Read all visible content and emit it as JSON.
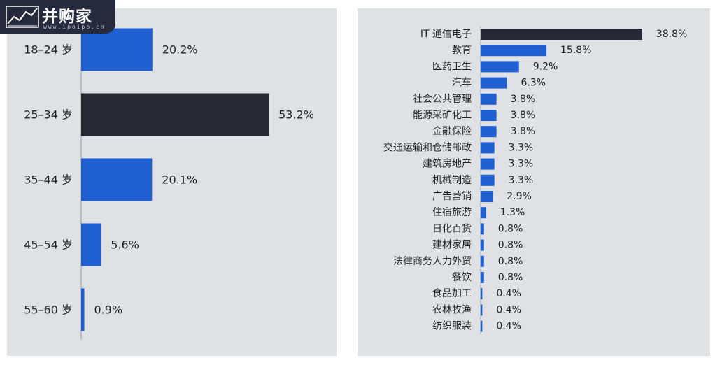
{
  "watermark": {
    "brand": "并购家",
    "url": "www.ipoipo.cn"
  },
  "colors": {
    "bar": "#1f5fcf",
    "highlight": "#262933",
    "text": "#222222",
    "axis": "#999999"
  },
  "chart_data": [
    {
      "type": "bar",
      "orientation": "horizontal",
      "title": "",
      "categories": [
        "18–24 岁",
        "25–34 岁",
        "35–44 岁",
        "45–54 岁",
        "55–60 岁"
      ],
      "values": [
        20.2,
        53.2,
        20.1,
        5.6,
        0.9
      ],
      "labels": [
        "20.2%",
        "53.2%",
        "20.1%",
        "5.6%",
        "0.9%"
      ],
      "highlight_index": 1,
      "unit": "%"
    },
    {
      "type": "bar",
      "orientation": "horizontal",
      "title": "",
      "categories": [
        "IT 通信电子",
        "教育",
        "医药卫生",
        "汽车",
        "社会公共管理",
        "能源采矿化工",
        "金融保险",
        "交通运输和仓储邮政",
        "建筑房地产",
        "机械制造",
        "广告营销",
        "住宿旅游",
        "日化百货",
        "建材家居",
        "法律商务人力外贸",
        "餐饮",
        "食品加工",
        "农林牧渔",
        "纺织服装"
      ],
      "values": [
        38.8,
        15.8,
        9.2,
        6.3,
        3.8,
        3.8,
        3.8,
        3.3,
        3.3,
        3.3,
        2.9,
        1.3,
        0.8,
        0.8,
        0.8,
        0.8,
        0.4,
        0.4,
        0.4
      ],
      "labels": [
        "38.8%",
        "15.8%",
        "9.2%",
        "6.3%",
        "3.8%",
        "3.8%",
        "3.8%",
        "3.3%",
        "3.3%",
        "3.3%",
        "2.9%",
        "1.3%",
        "0.8%",
        "0.8%",
        "0.8%",
        "0.8%",
        "0.4%",
        "0.4%",
        "0.4%"
      ],
      "highlight_index": 0,
      "unit": "%"
    }
  ]
}
